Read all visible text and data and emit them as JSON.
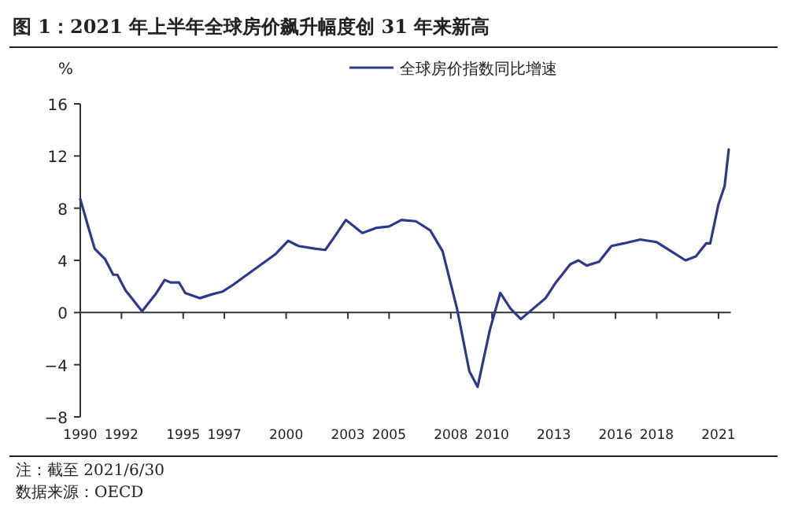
{
  "chart_data": {
    "type": "line",
    "title": "图 1：2021 年上半年全球房价飙升幅度创 31 年来新高",
    "ylabel": "%",
    "annotations": [
      "注：截至 2021/6/30",
      "数据来源：OECD"
    ],
    "legend": "top",
    "x": [
      1990.0,
      1990.4,
      1990.7,
      1991.2,
      1991.6,
      1991.8,
      1992.2,
      1992.5,
      1993.0,
      1993.4,
      1993.7,
      1994.1,
      1994.4,
      1994.8,
      1995.1,
      1995.8,
      1996.4,
      1996.9,
      1997.4,
      1998.1,
      1998.8,
      1999.5,
      2000.1,
      2000.6,
      2001.4,
      2001.9,
      2002.3,
      2002.9,
      2003.7,
      2004.4,
      2005.0,
      2005.6,
      2006.3,
      2007.0,
      2007.6,
      2008.3,
      2008.9,
      2009.3,
      2009.9,
      2010.4,
      2010.9,
      2011.4,
      2012.0,
      2012.6,
      2013.1,
      2013.8,
      2014.2,
      2014.6,
      2015.2,
      2015.8,
      2016.4,
      2017.2,
      2018.0,
      2018.7,
      2019.4,
      2019.9,
      2020.4,
      2020.6,
      2021.0,
      2021.3,
      2021.5
    ],
    "series": [
      {
        "name": "全球房价指数同比增速",
        "color": "#2b3a8c",
        "values": [
          8.7,
          6.5,
          4.9,
          4.1,
          2.9,
          2.9,
          1.7,
          1.1,
          0.1,
          0.9,
          1.5,
          2.5,
          2.3,
          2.3,
          1.5,
          1.1,
          1.4,
          1.6,
          2.1,
          2.9,
          3.7,
          4.5,
          5.5,
          5.1,
          4.9,
          4.8,
          5.7,
          7.1,
          6.1,
          6.5,
          6.6,
          7.1,
          7.0,
          6.3,
          4.7,
          0.3,
          -4.5,
          -5.7,
          -1.3,
          1.5,
          0.3,
          -0.5,
          0.3,
          1.1,
          2.3,
          3.7,
          4.0,
          3.6,
          3.9,
          5.1,
          5.3,
          5.6,
          5.4,
          4.7,
          4.0,
          4.3,
          5.3,
          5.3,
          8.3,
          9.7,
          12.5
        ]
      }
    ],
    "xlim": [
      1990,
      2021.6
    ],
    "xticks": [
      1990,
      1992,
      1995,
      1997,
      2000,
      2003,
      2005,
      2008,
      2010,
      2013,
      2016,
      2018,
      2021
    ],
    "ylim": [
      -8,
      16
    ],
    "yticks": [
      -8,
      -4,
      0,
      4,
      8,
      12,
      16
    ]
  }
}
